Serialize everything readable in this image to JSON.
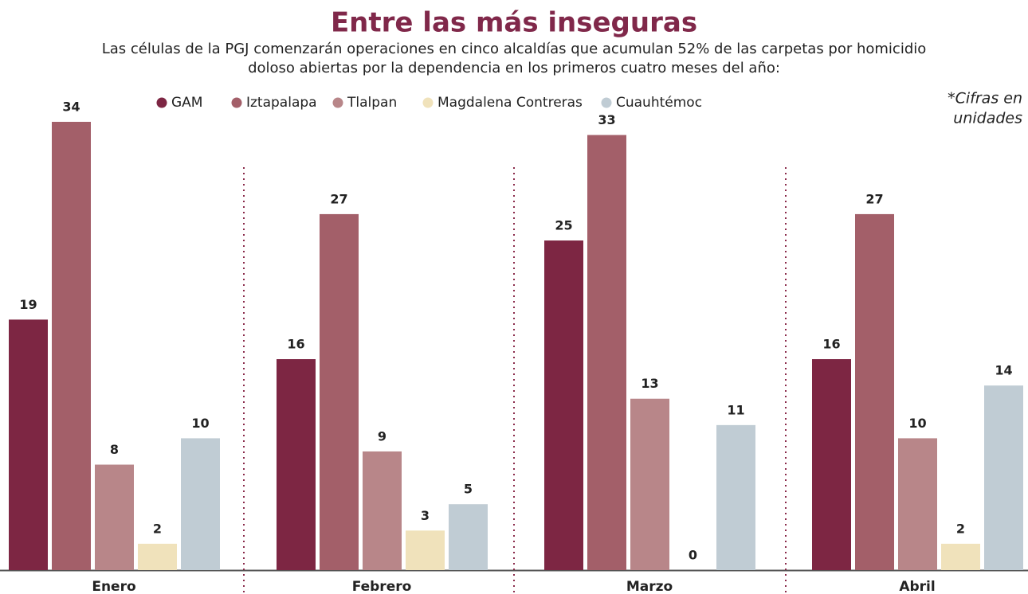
{
  "chart_data": {
    "type": "bar",
    "title": "Entre las más inseguras",
    "subtitle": [
      "Las células de la PGJ comenzarán operaciones en cinco alcaldías que acumulan 52% de las carpetas por homicidio",
      "doloso abiertas por la dependencia en los primeros cuatro meses del año:"
    ],
    "note": [
      "*Cifras en",
      "unidades"
    ],
    "categories": [
      "Enero",
      "Febrero",
      "Marzo",
      "Abril"
    ],
    "series": [
      {
        "name": "GAM",
        "color": "#7d2643",
        "values": [
          19,
          16,
          25,
          16
        ]
      },
      {
        "name": "Iztapalapa",
        "color": "#a35f69",
        "values": [
          34,
          27,
          33,
          27
        ]
      },
      {
        "name": "Tlalpan",
        "color": "#b88689",
        "values": [
          8,
          9,
          13,
          10
        ]
      },
      {
        "name": "Magdalena Contreras",
        "color": "#f0e2bb",
        "values": [
          2,
          3,
          0,
          2
        ]
      },
      {
        "name": "Cuauhtémoc",
        "color": "#c0ccd4",
        "values": [
          10,
          5,
          11,
          14
        ]
      }
    ]
  }
}
